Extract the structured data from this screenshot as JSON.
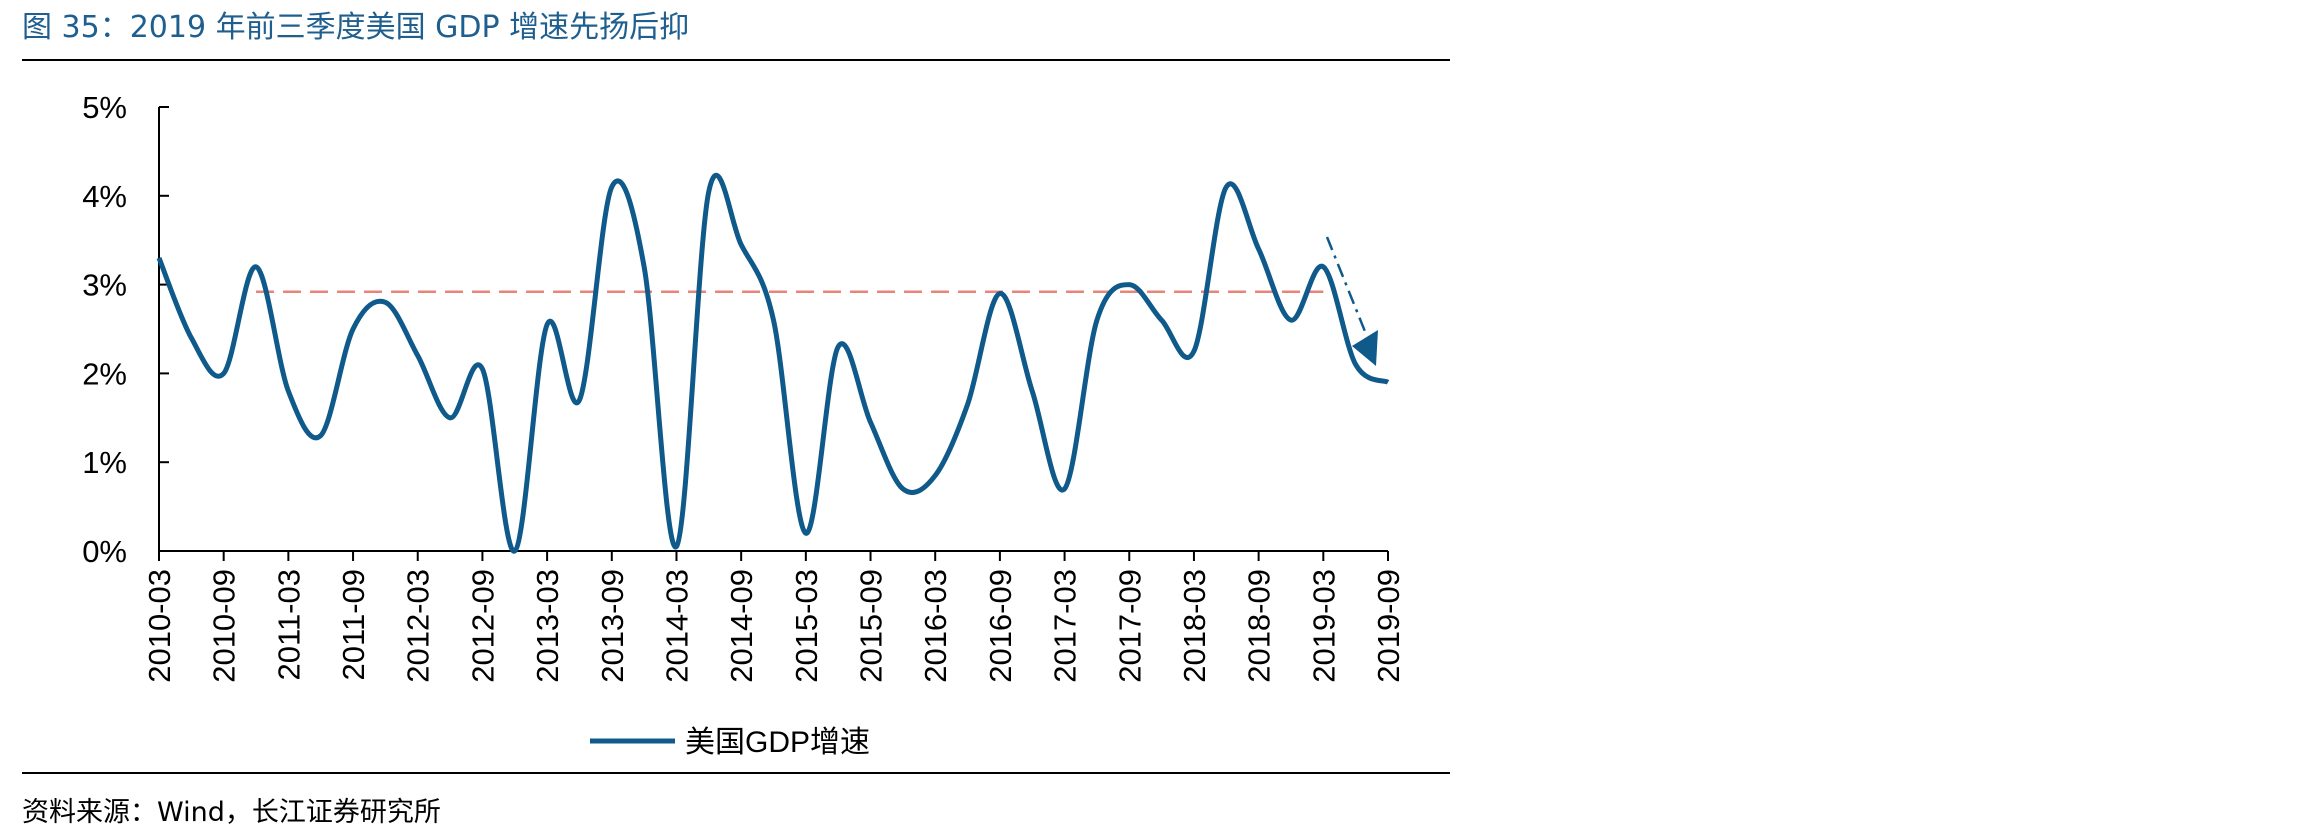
{
  "figure": {
    "title": "图 35：2019 年前三季度美国 GDP 增速先扬后抑",
    "source": "资料来源：Wind，长江证券研究所"
  },
  "chart_data": {
    "type": "line",
    "x": [
      "2010-03",
      "2010-06",
      "2010-09",
      "2010-12",
      "2011-03",
      "2011-06",
      "2011-09",
      "2011-12",
      "2012-03",
      "2012-06",
      "2012-09",
      "2012-12",
      "2013-03",
      "2013-06",
      "2013-09",
      "2013-12",
      "2014-03",
      "2014-06",
      "2014-09",
      "2014-12",
      "2015-03",
      "2015-06",
      "2015-09",
      "2015-12",
      "2016-03",
      "2016-06",
      "2016-09",
      "2016-12",
      "2017-03",
      "2017-06",
      "2017-09",
      "2017-12",
      "2018-03",
      "2018-06",
      "2018-09",
      "2018-12",
      "2019-03",
      "2019-06",
      "2019-09"
    ],
    "x_tick_labels": [
      "2010-03",
      "2010-09",
      "2011-03",
      "2011-09",
      "2012-03",
      "2012-09",
      "2013-03",
      "2013-09",
      "2014-03",
      "2014-09",
      "2015-03",
      "2015-09",
      "2016-03",
      "2016-09",
      "2017-03",
      "2017-09",
      "2018-03",
      "2018-09",
      "2019-03",
      "2019-09"
    ],
    "series": [
      {
        "name": "美国GDP增速",
        "color": "#0f5a8a",
        "values": [
          3.3,
          2.4,
          2.0,
          3.2,
          1.8,
          1.3,
          2.5,
          2.8,
          2.2,
          1.5,
          2.05,
          0.0,
          2.55,
          1.7,
          4.1,
          3.2,
          0.05,
          4.05,
          3.45,
          2.6,
          0.2,
          2.3,
          1.45,
          0.7,
          0.85,
          1.65,
          2.9,
          1.8,
          0.7,
          2.6,
          3.0,
          2.6,
          2.25,
          4.1,
          3.4,
          2.6,
          3.2,
          2.1,
          1.9
        ]
      }
    ],
    "reference_line": {
      "value": 2.92,
      "style": "dashed",
      "color": "#e8857a",
      "x_range": [
        "2010-12",
        "2019-03"
      ]
    },
    "annotation": {
      "type": "arrow",
      "style": "dash-dot",
      "color": "#0f5a8a",
      "direction": "down-right"
    },
    "y_ticks": [
      "0%",
      "1%",
      "2%",
      "3%",
      "4%",
      "5%"
    ],
    "ylim": [
      0,
      5
    ],
    "grid": false,
    "legend": {
      "position": "bottom-center"
    },
    "title": "",
    "xlabel": "",
    "ylabel": ""
  }
}
